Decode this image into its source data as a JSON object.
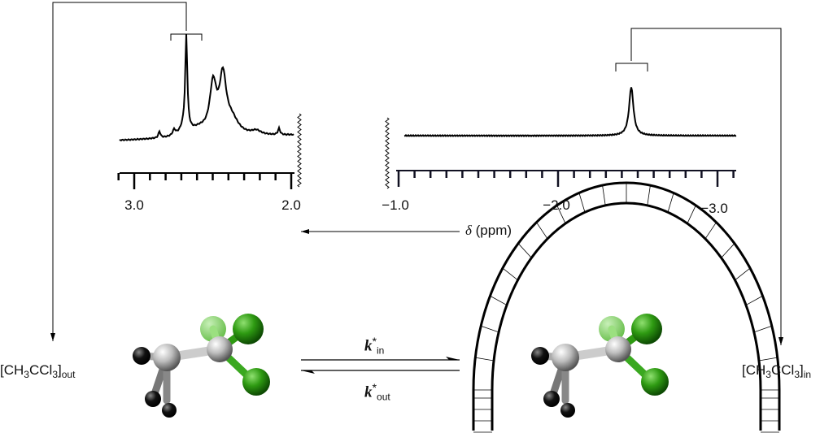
{
  "left_spectrum": {
    "tick_labels": [
      "3.0",
      "2.0"
    ],
    "range_ppm": [
      3.0,
      2.0
    ],
    "peak_ppm": 2.68
  },
  "right_spectrum": {
    "tick_labels": [
      "−1.0",
      "−2.0",
      "−3.0"
    ],
    "range_ppm": [
      -1.0,
      -3.1
    ],
    "peak_ppm": -2.45
  },
  "axis_label": {
    "symbol": "δ",
    "unit": "(ppm)"
  },
  "species_out": {
    "main": "[CH",
    "s1": "3",
    "mid": "CCl",
    "s2": "3",
    "end": "]",
    "sub": "out"
  },
  "species_in": {
    "main": "[CH",
    "s1": "3",
    "mid": "CCl",
    "s2": "3",
    "end": "]",
    "sub": "in"
  },
  "rate_in": {
    "k": "k",
    "star": "*",
    "sub": "in"
  },
  "rate_out": {
    "k": "k",
    "star": "*",
    "sub": "out"
  },
  "colors": {
    "chlorine": "#2e9a12",
    "carbon": "#c0c0c0",
    "hydrogen": "#111111",
    "line": "#000000"
  }
}
